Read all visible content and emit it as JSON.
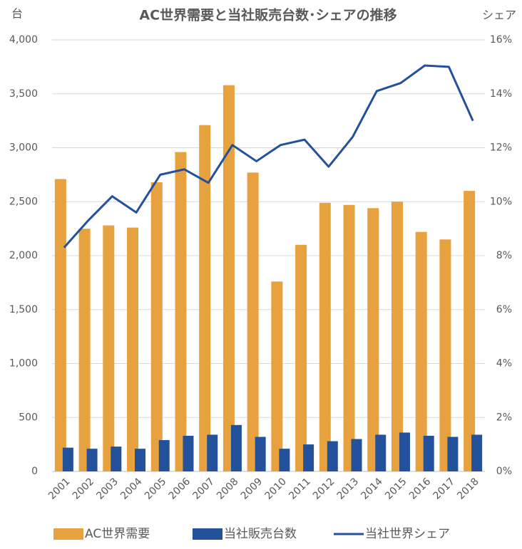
{
  "chart_data": {
    "type": "bar",
    "title": "AC世界需要と当社販売台数･シェアの推移",
    "y_label": "台",
    "y2_label": "シェア",
    "categories": [
      "2001",
      "2002",
      "2003",
      "2004",
      "2005",
      "2006",
      "2007",
      "2008",
      "2009",
      "2010",
      "2011",
      "2012",
      "2013",
      "2014",
      "2015",
      "2016",
      "2017",
      "2018"
    ],
    "series": [
      {
        "name": "AC世界需要",
        "type": "bar",
        "color": "#e8a13f",
        "values": [
          2710,
          2250,
          2280,
          2260,
          2680,
          2960,
          3210,
          3580,
          2770,
          1760,
          2100,
          2490,
          2470,
          2440,
          2500,
          2220,
          2150,
          2600
        ]
      },
      {
        "name": "当社販売台数",
        "type": "bar",
        "color": "#24519b",
        "values": [
          220,
          210,
          230,
          210,
          290,
          330,
          340,
          430,
          320,
          210,
          250,
          280,
          300,
          340,
          360,
          330,
          320,
          340
        ]
      },
      {
        "name": "当社世界シェア",
        "type": "line",
        "axis": "y2",
        "color": "#24519b",
        "values": [
          8.3,
          9.3,
          10.2,
          9.6,
          11.0,
          11.2,
          10.7,
          12.1,
          11.5,
          12.1,
          12.3,
          11.3,
          12.4,
          14.1,
          14.4,
          15.05,
          15.0,
          13.0
        ]
      }
    ],
    "ylim": [
      0,
      4000
    ],
    "yticks": [
      0,
      {
        "value": 500,
        "label": "500"
      },
      {
        "value": 1000,
        "label": "1,000"
      },
      {
        "value": 1500,
        "label": "1,500"
      },
      {
        "value": 2000,
        "label": "2,000"
      },
      {
        "value": 2500,
        "label": "2,500"
      },
      {
        "value": 3000,
        "label": "3,000"
      },
      {
        "value": 3500,
        "label": "3,500"
      },
      {
        "value": 4000,
        "label": "4,000"
      }
    ],
    "y2lim": [
      0,
      16
    ],
    "y2ticks": [
      {
        "value": 0,
        "label": "0%"
      },
      {
        "value": 2,
        "label": "2%"
      },
      {
        "value": 4,
        "label": "4%"
      },
      {
        "value": 6,
        "label": "6%"
      },
      {
        "value": 8,
        "label": "8%"
      },
      {
        "value": 10,
        "label": "10%"
      },
      {
        "value": 12,
        "label": "12%"
      },
      {
        "value": 14,
        "label": "14%"
      },
      {
        "value": 16,
        "label": "16%"
      }
    ],
    "grid": true,
    "legend": "bottom"
  }
}
